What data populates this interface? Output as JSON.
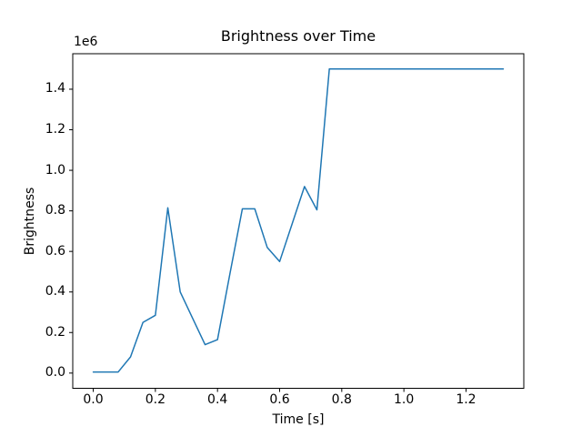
{
  "figure": {
    "background": "#ffffff"
  },
  "chart_data": {
    "type": "line",
    "title": "Brightness over Time",
    "xlabel": "Time [s]",
    "ylabel": "Brightness",
    "y_offset_label": "1e6",
    "line_color": "#1f77b4",
    "axis_color": "#000000",
    "grid": false,
    "legend": "none",
    "xlim": [
      -0.066,
      1.386
    ],
    "ylim": [
      -75000,
      1575000
    ],
    "xticks": {
      "values": [
        0.0,
        0.2,
        0.4,
        0.6,
        0.8,
        1.0,
        1.2
      ],
      "labels": [
        "0.0",
        "0.2",
        "0.4",
        "0.6",
        "0.8",
        "1.0",
        "1.2"
      ]
    },
    "yticks": {
      "values": [
        0,
        200000,
        400000,
        600000,
        800000,
        1000000,
        1200000,
        1400000
      ],
      "labels": [
        "0.0",
        "0.2",
        "0.4",
        "0.6",
        "0.8",
        "1.0",
        "1.2",
        "1.4"
      ]
    },
    "series": [
      {
        "name": "brightness",
        "x": [
          0.0,
          0.04,
          0.08,
          0.12,
          0.16,
          0.2,
          0.24,
          0.28,
          0.32,
          0.36,
          0.4,
          0.44,
          0.48,
          0.52,
          0.56,
          0.6,
          0.64,
          0.68,
          0.72,
          0.76,
          0.8,
          0.84,
          0.88,
          0.92,
          0.96,
          1.0,
          1.04,
          1.08,
          1.12,
          1.16,
          1.2,
          1.24,
          1.28,
          1.32
        ],
        "y": [
          5000,
          5000,
          5000,
          80000,
          250000,
          285000,
          815000,
          400000,
          270000,
          140000,
          165000,
          490000,
          810000,
          810000,
          620000,
          550000,
          735000,
          920000,
          805000,
          1500000,
          1500000,
          1500000,
          1500000,
          1500000,
          1500000,
          1500000,
          1500000,
          1500000,
          1500000,
          1500000,
          1500000,
          1500000,
          1500000,
          1500000
        ]
      }
    ]
  }
}
